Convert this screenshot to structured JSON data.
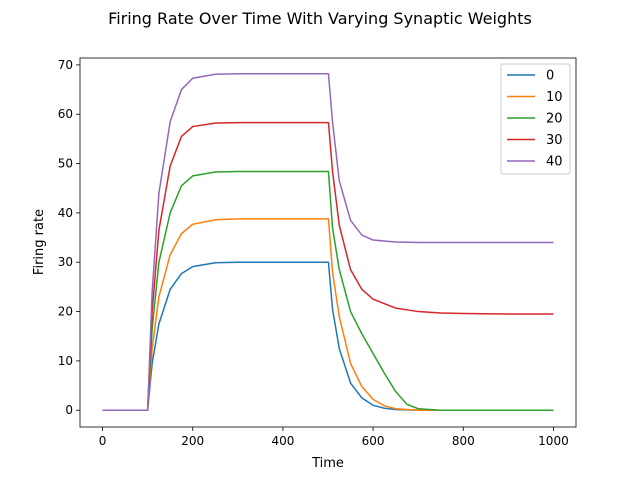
{
  "chart_data": {
    "type": "line",
    "title": "Firing Rate Over Time With Varying Synaptic Weights",
    "xlabel": "Time",
    "ylabel": "Firing rate",
    "xlim": [
      -50,
      1050
    ],
    "ylim": [
      -3.4,
      71.4
    ],
    "xticks": [
      0,
      200,
      400,
      600,
      800,
      1000
    ],
    "yticks": [
      0,
      10,
      20,
      30,
      40,
      50,
      60,
      70
    ],
    "grid": false,
    "legend": "top-right",
    "series": [
      {
        "name": "0",
        "color": "#1f77b4",
        "x": [
          0,
          99,
          100,
          110,
          125,
          150,
          175,
          200,
          250,
          300,
          400,
          500,
          501,
          510,
          525,
          550,
          575,
          600,
          625,
          650,
          700,
          800,
          1000
        ],
        "y": [
          0,
          0,
          0,
          9.5,
          17.5,
          24.5,
          27.7,
          29.1,
          29.9,
          30.0,
          30.0,
          30.0,
          30.0,
          20.5,
          12.5,
          5.5,
          2.5,
          1.0,
          0.4,
          0.15,
          0,
          0,
          0
        ]
      },
      {
        "name": "10",
        "color": "#ff7f0e",
        "x": [
          0,
          99,
          100,
          110,
          125,
          150,
          175,
          200,
          250,
          300,
          400,
          500,
          501,
          510,
          525,
          550,
          575,
          600,
          625,
          650,
          700,
          800,
          1000
        ],
        "y": [
          0,
          0,
          0,
          12.5,
          23.0,
          31.5,
          35.8,
          37.7,
          38.6,
          38.8,
          38.8,
          38.8,
          38.8,
          28.0,
          19.0,
          9.5,
          4.8,
          2.2,
          0.9,
          0.3,
          0,
          0,
          0
        ]
      },
      {
        "name": "20",
        "color": "#2ca02c",
        "x": [
          0,
          99,
          100,
          110,
          125,
          150,
          175,
          200,
          250,
          300,
          400,
          500,
          501,
          510,
          525,
          550,
          575,
          600,
          625,
          650,
          675,
          700,
          750,
          800,
          1000
        ],
        "y": [
          0,
          0,
          0,
          16.5,
          30.0,
          40.0,
          45.5,
          47.5,
          48.3,
          48.4,
          48.4,
          48.4,
          48.4,
          37.0,
          28.5,
          20.0,
          15.5,
          11.5,
          7.5,
          3.8,
          1.2,
          0.3,
          0,
          0,
          0
        ]
      },
      {
        "name": "30",
        "color": "#d62728",
        "x": [
          0,
          99,
          100,
          110,
          125,
          150,
          175,
          200,
          250,
          300,
          400,
          500,
          501,
          510,
          525,
          550,
          575,
          600,
          650,
          700,
          750,
          800,
          900,
          1000
        ],
        "y": [
          0,
          0,
          0,
          20.0,
          36.5,
          49.5,
          55.5,
          57.5,
          58.2,
          58.3,
          58.3,
          58.3,
          58.3,
          48.5,
          37.5,
          28.5,
          24.5,
          22.5,
          20.7,
          20.0,
          19.7,
          19.6,
          19.5,
          19.5
        ]
      },
      {
        "name": "40",
        "color": "#9467bd",
        "x": [
          0,
          99,
          100,
          110,
          125,
          150,
          175,
          200,
          250,
          300,
          400,
          500,
          501,
          510,
          525,
          550,
          575,
          600,
          650,
          700,
          800,
          1000
        ],
        "y": [
          0,
          0,
          0,
          24.0,
          44.0,
          58.5,
          65.0,
          67.3,
          68.1,
          68.2,
          68.2,
          68.2,
          68.2,
          58.5,
          46.5,
          38.5,
          35.5,
          34.5,
          34.1,
          34.0,
          34.0,
          34.0
        ]
      }
    ]
  }
}
